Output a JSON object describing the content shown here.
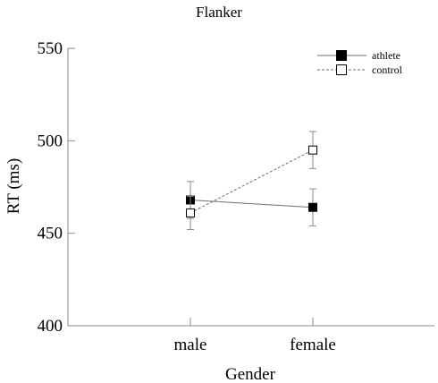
{
  "chart_data": {
    "type": "line",
    "title": "Flanker",
    "xlabel": "Gender",
    "ylabel": "RT (ms)",
    "categories": [
      "male",
      "female"
    ],
    "ylim": [
      400,
      550
    ],
    "yticks": [
      400,
      450,
      500,
      550
    ],
    "grid": false,
    "legend_position": "top-right",
    "series": [
      {
        "name": "athlete",
        "values": [
          468,
          464
        ],
        "error": [
          10,
          10
        ],
        "marker": "filled-square",
        "line_style": "solid",
        "color": "#000000"
      },
      {
        "name": "control",
        "values": [
          461,
          495
        ],
        "error": [
          9,
          10
        ],
        "marker": "open-square",
        "line_style": "dashed",
        "color": "#000000"
      }
    ]
  }
}
